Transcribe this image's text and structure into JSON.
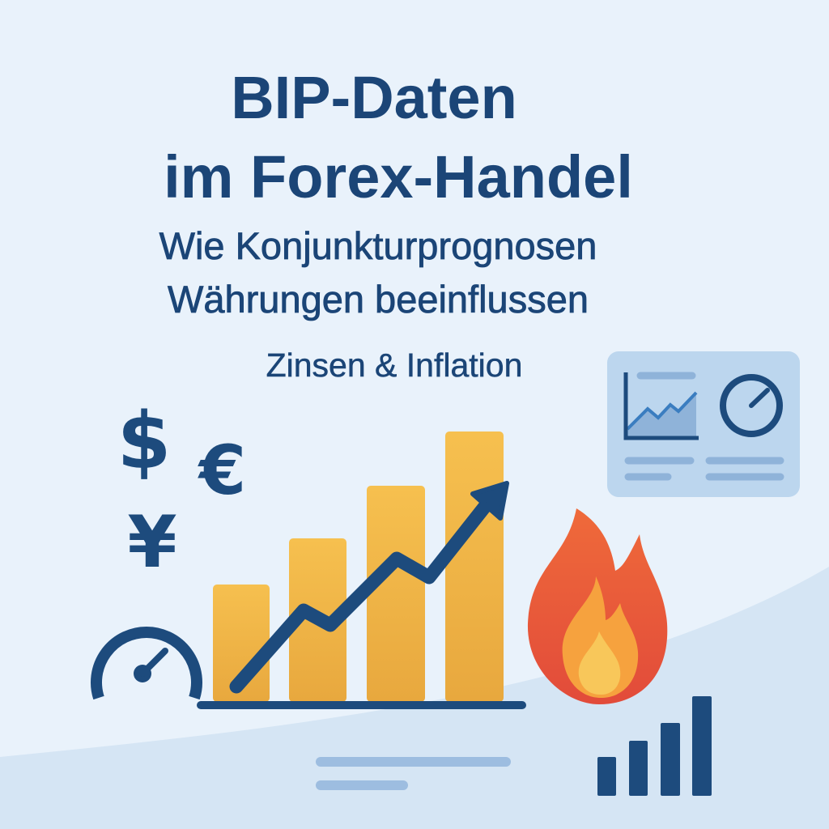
{
  "title": {
    "line1": "BIP-Daten",
    "line2": "im Forex-Handel"
  },
  "subtitle": {
    "line1": "Wie Konjunkturprognosen",
    "line2": "Währungen beeinflussen"
  },
  "tagline": "Zinsen & Inflation",
  "currencies": {
    "dollar": "$",
    "euro": "€",
    "yen": "¥"
  },
  "icons": [
    "dollar-icon",
    "euro-icon",
    "yen-icon",
    "gauge-icon",
    "bar-chart-icon",
    "trend-arrow-icon",
    "flame-icon",
    "dashboard-icon",
    "signal-bars-icon"
  ],
  "colors": {
    "background": "#e9f2fb",
    "text": "#1b4577",
    "bars": "#f2b84b",
    "arrow": "#1d4b7d",
    "flame": "#e8553a",
    "panel": "#bcd6ee"
  }
}
